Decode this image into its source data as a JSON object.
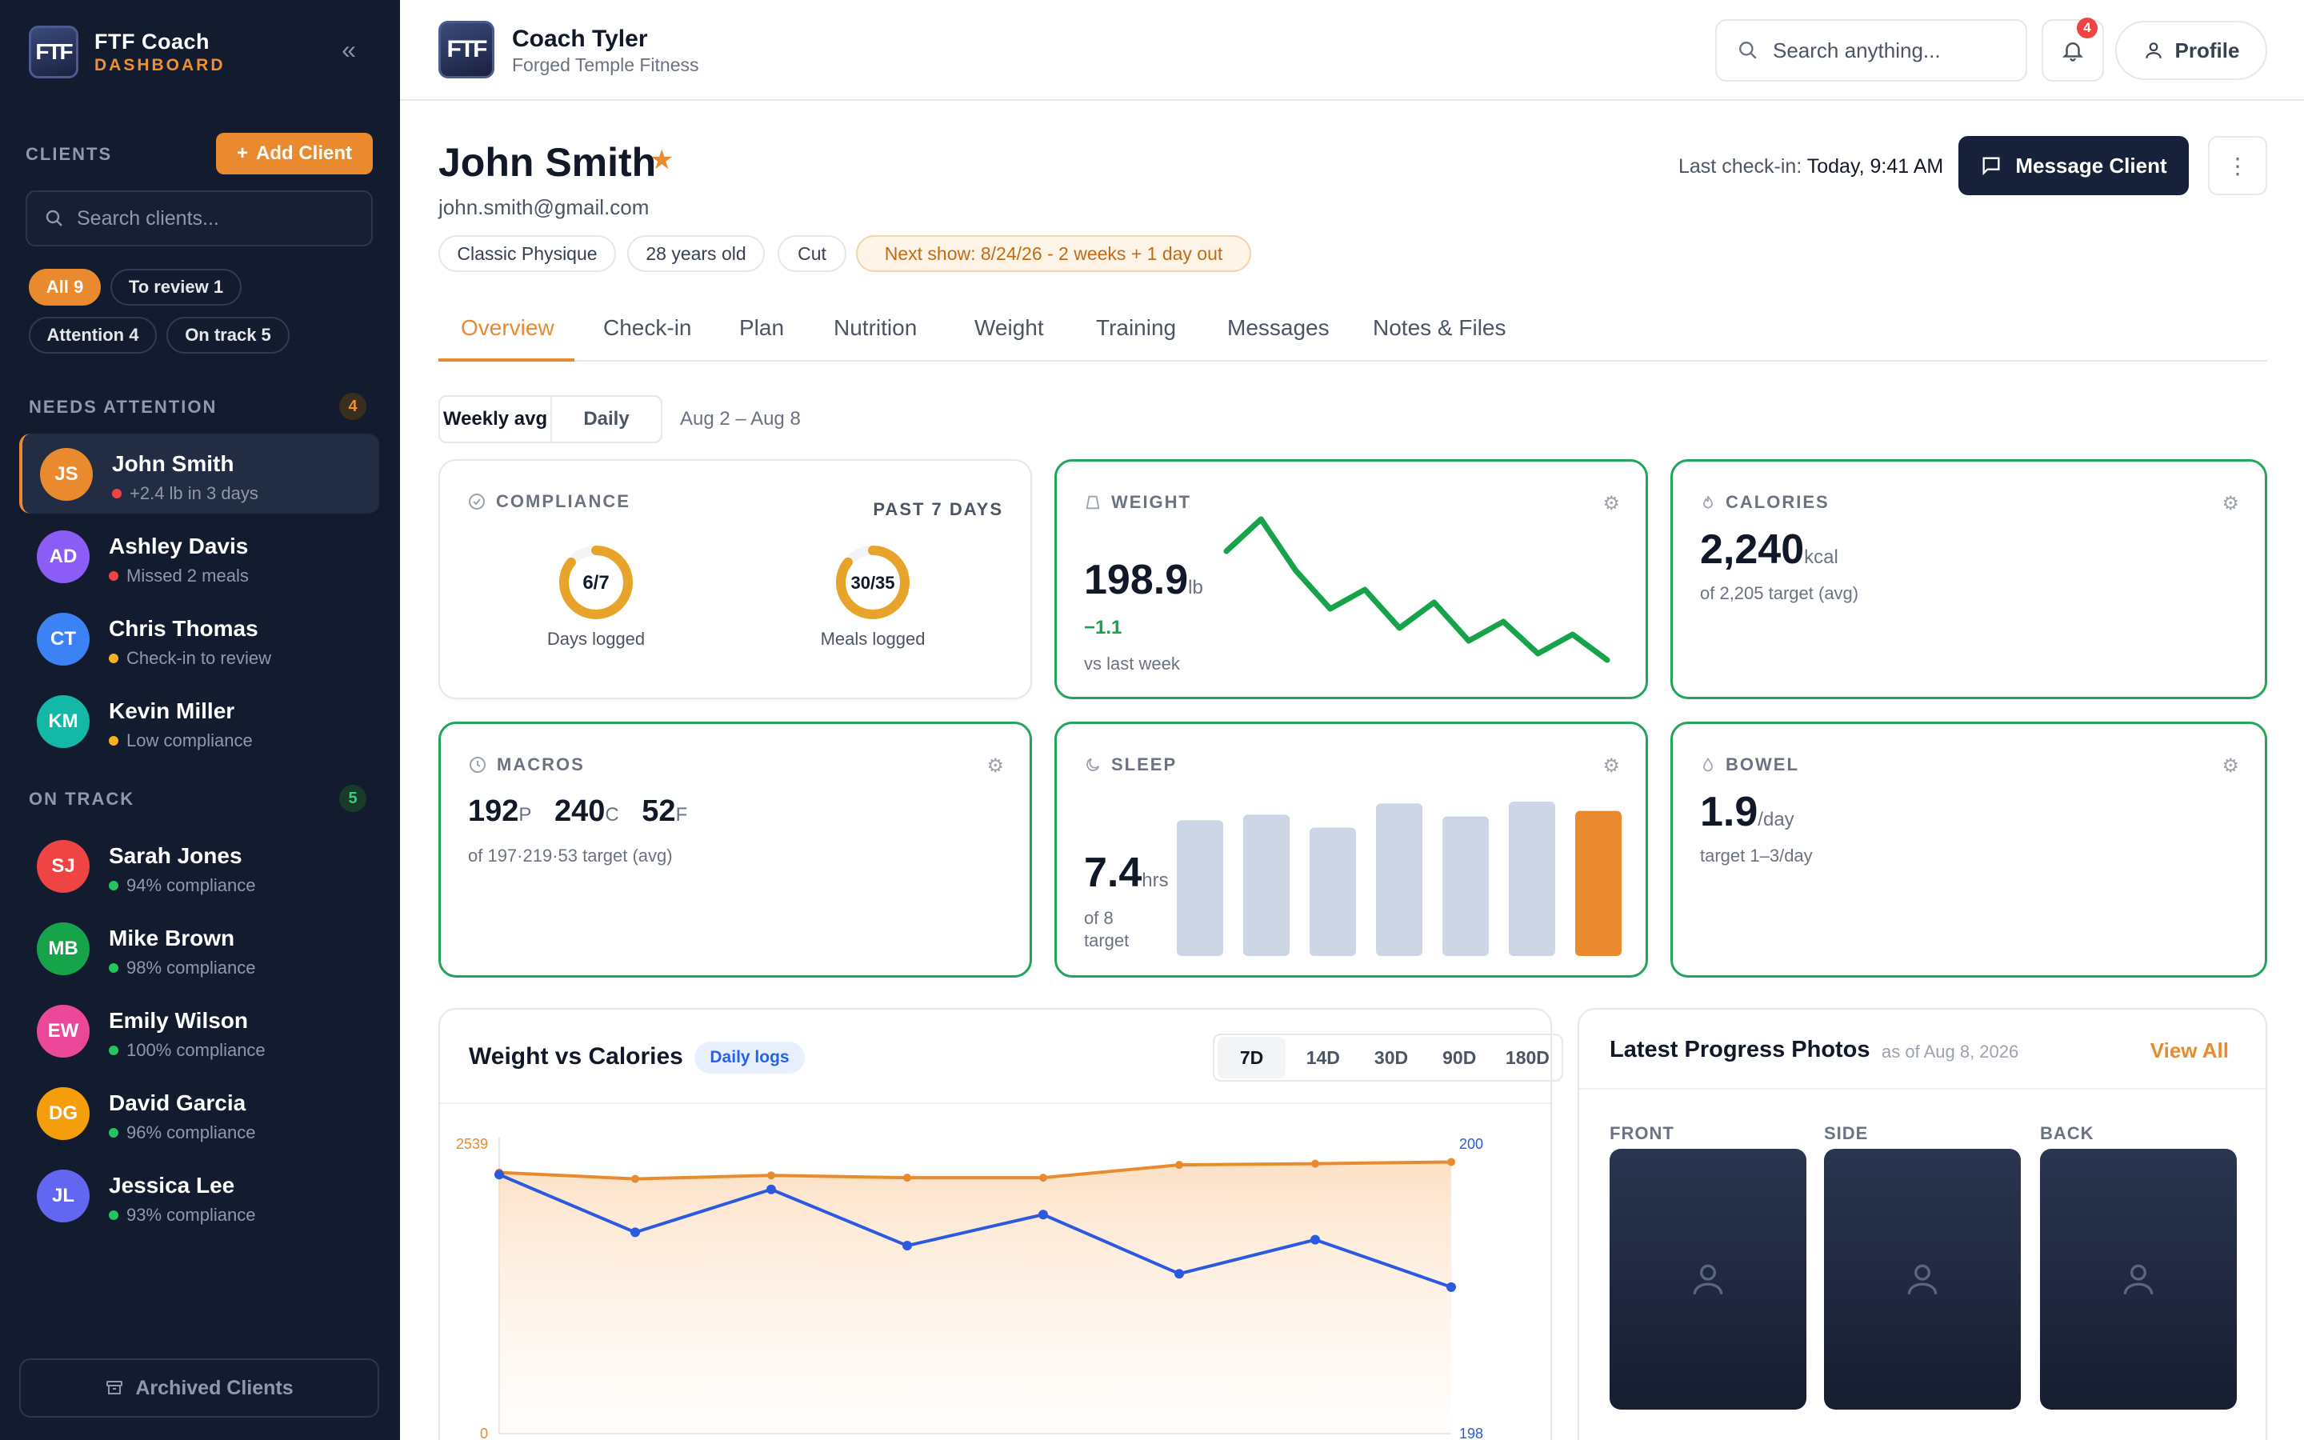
{
  "sidebar": {
    "brand_name": "FTF Coach",
    "brand_sub": "DASHBOARD",
    "logo_text": "FTF",
    "clients_label": "CLIENTS",
    "add_client": "Add Client",
    "search_placeholder": "Search clients...",
    "filters": [
      {
        "label": "All 9",
        "active": true
      },
      {
        "label": "To review 1",
        "active": false
      },
      {
        "label": "Attention 4",
        "active": false
      },
      {
        "label": "On track 5",
        "active": false
      }
    ],
    "needs_attention_label": "NEEDS ATTENTION",
    "needs_attention_count": "4",
    "on_track_label": "ON TRACK",
    "on_track_count": "5",
    "attention_clients": [
      {
        "initials": "JS",
        "name": "John Smith",
        "meta": "+2.4 lb in 3 days",
        "avatar": "#ea8a2e",
        "dot": "#ef4444"
      },
      {
        "initials": "AD",
        "name": "Ashley Davis",
        "meta": "Missed 2 meals",
        "avatar": "#8b5cf6",
        "dot": "#ef4444"
      },
      {
        "initials": "CT",
        "name": "Chris Thomas",
        "meta": "Check-in to review",
        "avatar": "#3b82f6",
        "dot": "#f5b324"
      },
      {
        "initials": "KM",
        "name": "Kevin Miller",
        "meta": "Low compliance",
        "avatar": "#14b8a6",
        "dot": "#f5b324"
      }
    ],
    "track_clients": [
      {
        "initials": "SJ",
        "name": "Sarah Jones",
        "meta": "94% compliance",
        "avatar": "#ef4444",
        "dot": "#22c55e"
      },
      {
        "initials": "MB",
        "name": "Mike Brown",
        "meta": "98% compliance",
        "avatar": "#16a34a",
        "dot": "#22c55e"
      },
      {
        "initials": "EW",
        "name": "Emily Wilson",
        "meta": "100% compliance",
        "avatar": "#ec4899",
        "dot": "#22c55e"
      },
      {
        "initials": "DG",
        "name": "David Garcia",
        "meta": "96% compliance",
        "avatar": "#f59e0b",
        "dot": "#22c55e"
      },
      {
        "initials": "JL",
        "name": "Jessica Lee",
        "meta": "93% compliance",
        "avatar": "#6366f1",
        "dot": "#22c55e"
      }
    ],
    "archived": "Archived Clients"
  },
  "topbar": {
    "coach_name": "Coach Tyler",
    "gym": "Forged Temple Fitness",
    "search_placeholder": "Search anything...",
    "notifications": "4",
    "profile": "Profile"
  },
  "client": {
    "name": "John Smith",
    "email": "john.smith@gmail.com",
    "tags": [
      "Classic Physique",
      "28 years old",
      "Cut"
    ],
    "next_show": "Next show: 8/24/26 - 2 weeks + 1 day out",
    "last_checkin_label": "Last check-in:",
    "last_checkin_value": "Today, 9:41 AM",
    "message_btn": "Message Client"
  },
  "tabs": [
    "Overview",
    "Check-in",
    "Plan",
    "Nutrition",
    "Weight",
    "Training",
    "Messages",
    "Notes & Files"
  ],
  "view": {
    "weekly": "Weekly avg",
    "daily": "Daily",
    "date_range": "Aug 2 – Aug 8"
  },
  "compliance": {
    "label": "COMPLIANCE",
    "period": "PAST 7 DAYS",
    "days_value": "6/7",
    "days_fraction": 0.857,
    "days_label": "Days logged",
    "meals_value": "30/35",
    "meals_fraction": 0.857,
    "meals_label": "Meals logged"
  },
  "weight_card": {
    "label": "WEIGHT",
    "value": "198.9",
    "unit": "lb",
    "delta": "−1.1",
    "delta_label": "vs last week",
    "trend": [
      200.4,
      200.9,
      200.1,
      199.5,
      199.8,
      199.2,
      199.6,
      199.0,
      199.3,
      198.8,
      199.1,
      198.7
    ]
  },
  "calories_card": {
    "label": "CALORIES",
    "value": "2,240",
    "unit": "kcal",
    "sub": "of 2,205 target (avg)"
  },
  "macros_card": {
    "label": "MACROS",
    "p": "192",
    "p_unit": "P",
    "c": "240",
    "c_unit": "C",
    "f": "52",
    "f_unit": "F",
    "sub": "of 197·219·53 target (avg)"
  },
  "sleep_card": {
    "label": "SLEEP",
    "value": "7.4",
    "unit": "hrs",
    "sub1": "of 8",
    "sub2": "target",
    "bars": [
      7.3,
      7.6,
      6.9,
      8.2,
      7.5,
      8.3,
      7.8
    ],
    "highlight_index": 6
  },
  "bowel_card": {
    "label": "BOWEL",
    "value": "1.9",
    "unit": "/day",
    "sub": "target 1–3/day"
  },
  "weight_calories": {
    "title": "Weight vs Calories",
    "pill": "Daily logs",
    "ranges": [
      "7D",
      "14D",
      "30D",
      "90D",
      "180D"
    ],
    "active_range": "7D"
  },
  "chart_data": {
    "type": "line",
    "title": "Weight vs Calories",
    "x": [
      1,
      2,
      3,
      4,
      5,
      6,
      7,
      8
    ],
    "y_left_ticks": [
      "2539",
      "0"
    ],
    "y_right_ticks": [
      "200",
      "198"
    ],
    "ylim_left": [
      0,
      2539
    ],
    "ylim_right": [
      198,
      200
    ],
    "series": [
      {
        "axis": "left",
        "color": "#ea8a2e",
        "values": [
          2240,
          2185,
          2215,
          2195,
          2195,
          2305,
          2315,
          2330
        ]
      },
      {
        "axis": "right",
        "color": "#2b59e0",
        "values": [
          199.75,
          199.36,
          199.65,
          199.27,
          199.48,
          199.08,
          199.31,
          198.99
        ]
      }
    ]
  },
  "photos": {
    "title": "Latest Progress Photos",
    "as_of": "as of Aug 8, 2026",
    "view_all": "View All",
    "labels": [
      "FRONT",
      "SIDE",
      "BACK"
    ]
  }
}
